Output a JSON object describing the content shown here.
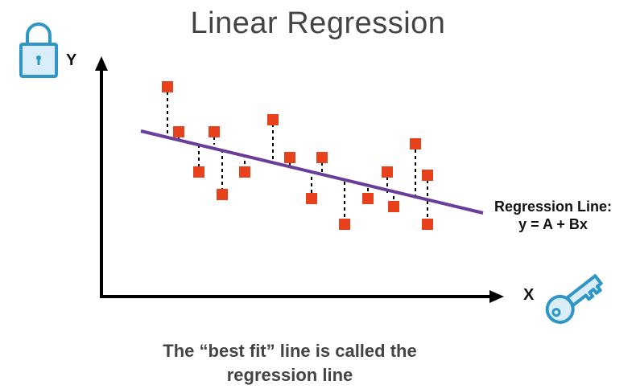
{
  "title": "Linear Regression",
  "axis": {
    "x_label": "X",
    "y_label": "Y"
  },
  "regression": {
    "label": "Regression Line:",
    "equation": "y = A + Bx"
  },
  "caption": {
    "line1": "The “best fit” line is called the",
    "line2": "regression line"
  },
  "icons": {
    "lock": "lock-icon",
    "key": "key-icon"
  },
  "colors": {
    "point": "#e8421c",
    "line": "#6a3d9a",
    "icon": "#2f96c7",
    "icon_fill": "#d9eef8"
  }
}
